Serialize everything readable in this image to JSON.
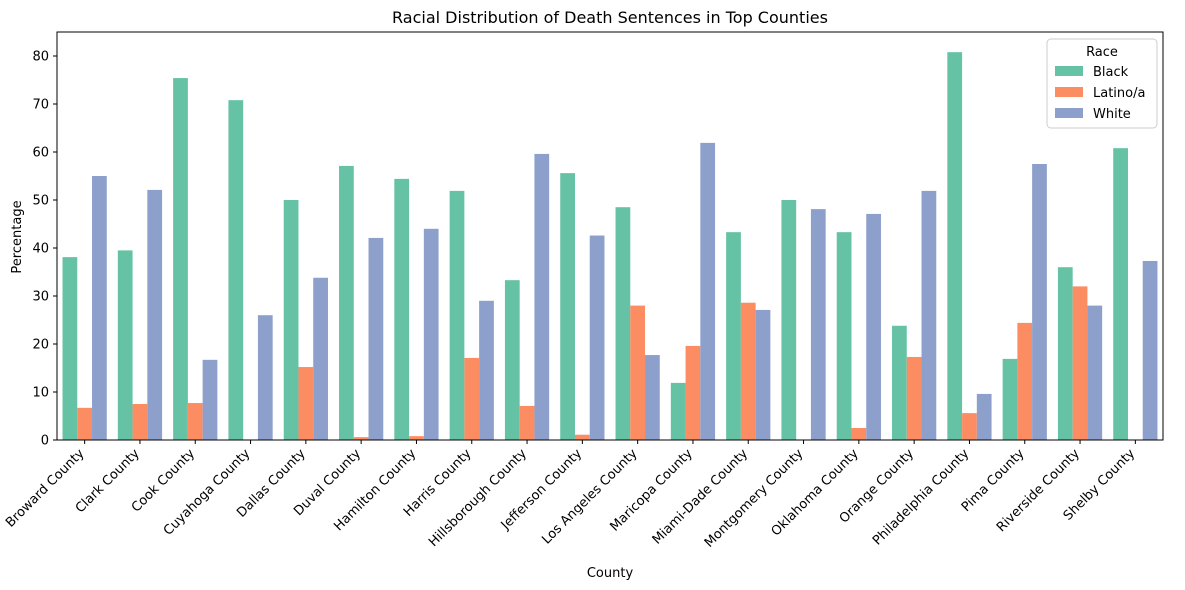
{
  "chart_data": {
    "type": "bar",
    "title": "Racial Distribution of Death Sentences in Top Counties",
    "xlabel": "County",
    "ylabel": "Percentage",
    "ylim": [
      0,
      85
    ],
    "yticks": [
      0,
      10,
      20,
      30,
      40,
      50,
      60,
      70,
      80
    ],
    "grid": false,
    "legend": {
      "title": "Race",
      "placement": "top-right"
    },
    "categories": [
      "Broward County",
      "Clark County",
      "Cook County",
      "Cuyahoga County",
      "Dallas County",
      "Duval County",
      "Hamilton County",
      "Harris County",
      "Hillsborough County",
      "Jefferson County",
      "Los Angeles County",
      "Maricopa County",
      "Miami-Dade County",
      "Montgomery County",
      "Oklahoma County",
      "Orange County",
      "Philadelphia County",
      "Pima County",
      "Riverside County",
      "Shelby County"
    ],
    "series": [
      {
        "name": "Black",
        "color": "#66c2a5",
        "values": [
          38.1,
          39.5,
          75.4,
          70.8,
          50.0,
          57.1,
          54.4,
          51.9,
          33.3,
          55.6,
          48.5,
          11.9,
          43.3,
          50.0,
          43.3,
          23.8,
          80.8,
          16.9,
          36.0,
          60.8
        ]
      },
      {
        "name": "Latino/a",
        "color": "#fc8d62",
        "values": [
          6.7,
          7.5,
          7.7,
          0,
          15.2,
          0.6,
          0.8,
          17.1,
          7.1,
          1.1,
          28.0,
          19.6,
          28.6,
          0,
          2.5,
          17.3,
          5.6,
          24.4,
          32.0,
          0
        ]
      },
      {
        "name": "White",
        "color": "#8da0cb",
        "values": [
          55.0,
          52.1,
          16.7,
          26.0,
          33.8,
          42.1,
          44.0,
          29.0,
          59.6,
          42.6,
          17.7,
          61.9,
          27.1,
          48.1,
          47.1,
          51.9,
          9.6,
          57.5,
          28.0,
          37.3
        ]
      }
    ]
  }
}
